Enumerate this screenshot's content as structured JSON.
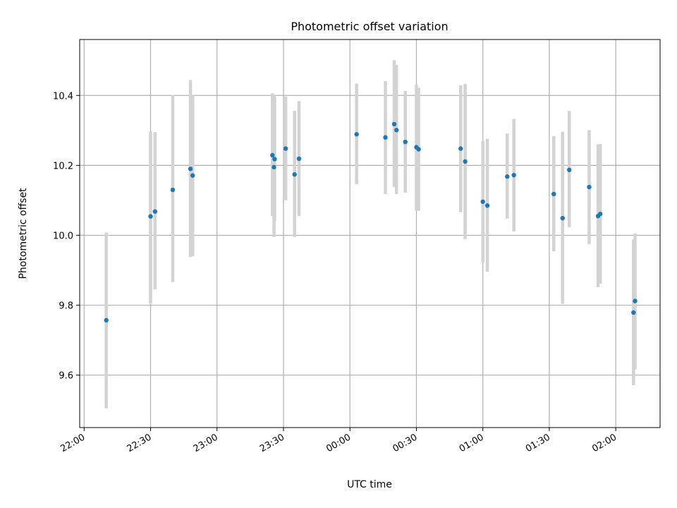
{
  "chart_data": {
    "type": "scatter",
    "title": "Photometric offset variation",
    "xlabel": "UTC time",
    "ylabel": "Photometric offset",
    "x_ticks": [
      "22:00",
      "22:30",
      "23:00",
      "23:30",
      "00:00",
      "00:30",
      "01:00",
      "01:30",
      "02:00"
    ],
    "y_ticks": [
      "9.6",
      "9.8",
      "10.0",
      "10.2",
      "10.4"
    ],
    "x_tick_minutes": [
      0,
      30,
      60,
      90,
      120,
      150,
      180,
      210,
      240
    ],
    "y_tick_values": [
      9.6,
      9.8,
      10.0,
      10.2,
      10.4
    ],
    "xlim_utc": [
      "21:58",
      "02:20"
    ],
    "xlim_minutes": [
      -2,
      260
    ],
    "ylim": [
      9.45,
      10.56
    ],
    "grid": true,
    "colors": {
      "points": "#1f77b4",
      "error_bars": "#d3d3d3",
      "grid": "#b0b0b0"
    },
    "points": [
      {
        "t": "22:10",
        "y": 9.757,
        "lo": 9.505,
        "hi": 10.008
      },
      {
        "t": "22:30",
        "y": 10.054,
        "lo": 9.805,
        "hi": 10.297
      },
      {
        "t": "22:32",
        "y": 10.068,
        "lo": 9.845,
        "hi": 10.295
      },
      {
        "t": "22:40",
        "y": 10.13,
        "lo": 9.866,
        "hi": 10.401
      },
      {
        "t": "22:48",
        "y": 10.19,
        "lo": 9.938,
        "hi": 10.444
      },
      {
        "t": "22:49",
        "y": 10.171,
        "lo": 9.94,
        "hi": 10.4
      },
      {
        "t": "23:25",
        "y": 10.229,
        "lo": 10.055,
        "hi": 10.406
      },
      {
        "t": "23:25",
        "y": 10.195,
        "lo": 9.995,
        "hi": 10.4
      },
      {
        "t": "23:26",
        "y": 10.218,
        "lo": 10.04,
        "hi": 10.396
      },
      {
        "t": "23:31",
        "y": 10.248,
        "lo": 10.1,
        "hi": 10.397
      },
      {
        "t": "23:35",
        "y": 10.174,
        "lo": 9.995,
        "hi": 10.356
      },
      {
        "t": "23:37",
        "y": 10.219,
        "lo": 10.055,
        "hi": 10.384
      },
      {
        "t": "00:03",
        "y": 10.289,
        "lo": 10.146,
        "hi": 10.434
      },
      {
        "t": "00:16",
        "y": 10.28,
        "lo": 10.118,
        "hi": 10.441
      },
      {
        "t": "00:20",
        "y": 10.318,
        "lo": 10.138,
        "hi": 10.501
      },
      {
        "t": "00:21",
        "y": 10.301,
        "lo": 10.118,
        "hi": 10.487
      },
      {
        "t": "00:25",
        "y": 10.267,
        "lo": 10.122,
        "hi": 10.413
      },
      {
        "t": "00:30",
        "y": 10.252,
        "lo": 10.07,
        "hi": 10.431
      },
      {
        "t": "00:31",
        "y": 10.246,
        "lo": 10.07,
        "hi": 10.422
      },
      {
        "t": "00:50",
        "y": 10.248,
        "lo": 10.066,
        "hi": 10.429
      },
      {
        "t": "00:52",
        "y": 10.211,
        "lo": 9.989,
        "hi": 10.433
      },
      {
        "t": "01:00",
        "y": 10.096,
        "lo": 9.922,
        "hi": 10.27
      },
      {
        "t": "01:02",
        "y": 10.085,
        "lo": 9.896,
        "hi": 10.276
      },
      {
        "t": "01:11",
        "y": 10.168,
        "lo": 10.048,
        "hi": 10.291
      },
      {
        "t": "01:14",
        "y": 10.172,
        "lo": 10.011,
        "hi": 10.333
      },
      {
        "t": "01:32",
        "y": 10.118,
        "lo": 9.954,
        "hi": 10.284
      },
      {
        "t": "01:36",
        "y": 10.049,
        "lo": 9.804,
        "hi": 10.296
      },
      {
        "t": "01:39",
        "y": 10.187,
        "lo": 10.023,
        "hi": 10.356
      },
      {
        "t": "01:48",
        "y": 10.138,
        "lo": 9.975,
        "hi": 10.301
      },
      {
        "t": "01:52",
        "y": 10.055,
        "lo": 9.852,
        "hi": 10.26
      },
      {
        "t": "01:53",
        "y": 10.061,
        "lo": 9.862,
        "hi": 10.261
      },
      {
        "t": "02:08",
        "y": 9.779,
        "lo": 9.571,
        "hi": 9.988
      },
      {
        "t": "02:08",
        "y": 9.812,
        "lo": 9.617,
        "hi": 10.005
      }
    ]
  }
}
